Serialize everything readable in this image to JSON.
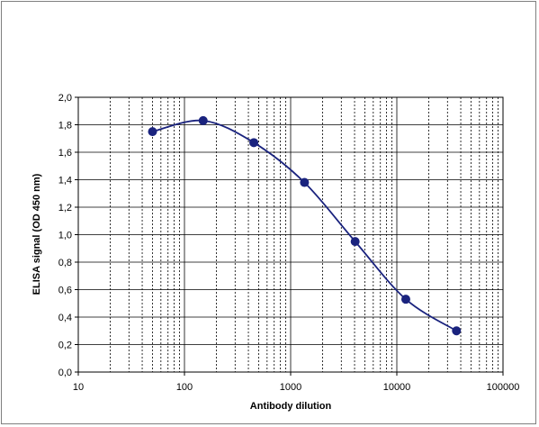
{
  "chart_data": {
    "type": "line",
    "title": "",
    "xlabel": "Antibody dilution",
    "ylabel": "ELISA signal (OD 450 nm)",
    "xscale": "log",
    "xlim": [
      10,
      100000
    ],
    "ylim": [
      0,
      2.0
    ],
    "grid": true,
    "legend": "none",
    "x_tick_labels": [
      "10",
      "100",
      "1000",
      "10000",
      "100000"
    ],
    "y_tick_labels": [
      "0,0",
      "0,2",
      "0,4",
      "0,6",
      "0,8",
      "1,0",
      "1,2",
      "1,4",
      "1,6",
      "1,8",
      "2,0"
    ],
    "series": [
      {
        "x": [
          50,
          150,
          450,
          1350,
          4050,
          12150,
          36450
        ],
        "y": [
          1.75,
          1.83,
          1.67,
          1.38,
          0.95,
          0.53,
          0.3
        ],
        "color": "#1a237e"
      }
    ]
  }
}
